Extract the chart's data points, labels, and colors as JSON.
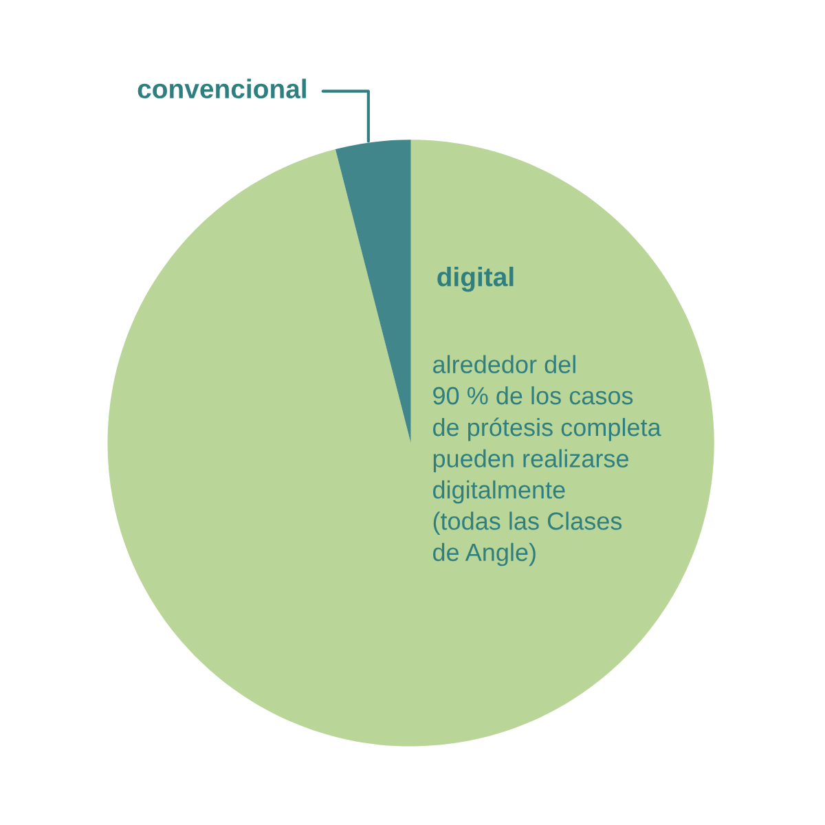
{
  "chart_data": {
    "type": "pie",
    "categories": [
      "digital",
      "convencional"
    ],
    "values": [
      96,
      4
    ],
    "colors": [
      "#b9d597",
      "#40868a"
    ],
    "annotations": [
      "alrededor del\n90 % de los casos\nde prótesis completa\npueden realizarse\ndigitalmente\n(todas las Clases\nde Angle)"
    ],
    "legend": false
  }
}
